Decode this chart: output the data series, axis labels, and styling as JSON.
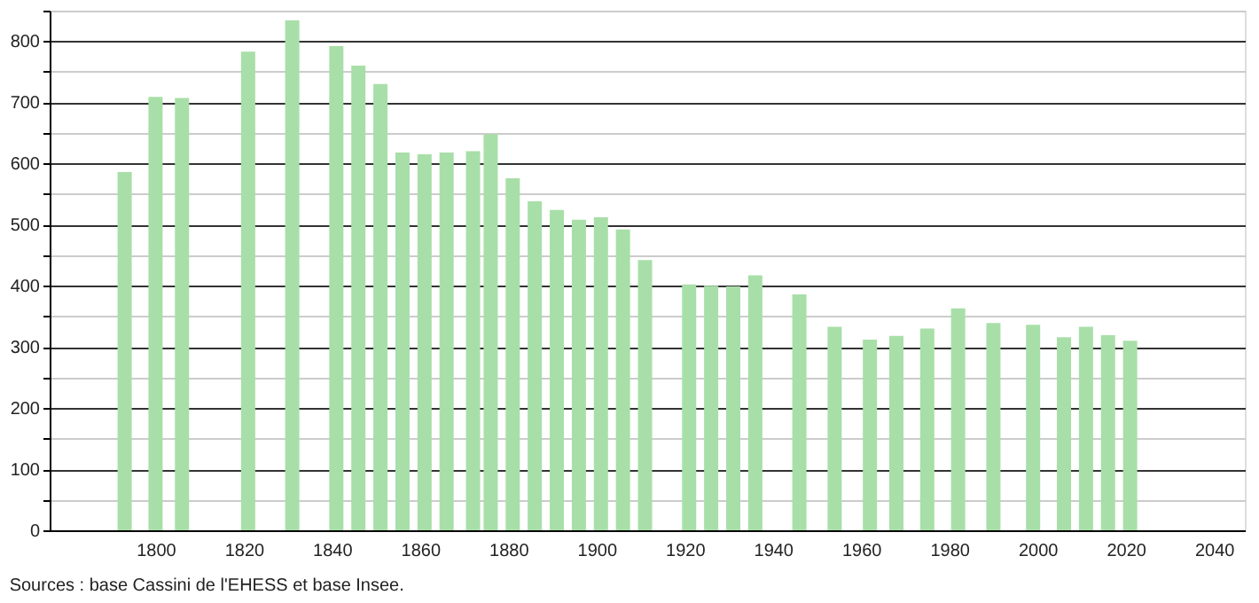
{
  "chart_data": {
    "type": "bar",
    "x": [
      1793,
      1800,
      1806,
      1821,
      1831,
      1841,
      1846,
      1851,
      1856,
      1861,
      1866,
      1872,
      1876,
      1881,
      1886,
      1891,
      1896,
      1901,
      1906,
      1911,
      1921,
      1926,
      1931,
      1936,
      1946,
      1954,
      1962,
      1968,
      1975,
      1982,
      1990,
      1999,
      2006,
      2011,
      2016,
      2021
    ],
    "values": [
      586,
      709,
      707,
      783,
      834,
      792,
      760,
      730,
      618,
      615,
      618,
      620,
      648,
      576,
      538,
      524,
      508,
      512,
      492,
      442,
      402,
      400,
      399,
      417,
      386,
      333,
      312,
      318,
      330,
      363,
      339,
      336,
      316,
      333,
      319,
      310
    ],
    "color": "#a8dfa8",
    "xlim": [
      1778,
      2045
    ],
    "xticks": [
      1800,
      1820,
      1840,
      1860,
      1880,
      1900,
      1920,
      1940,
      1960,
      1980,
      2000,
      2020,
      2040
    ],
    "ylim": [
      0,
      850
    ],
    "yticks": [
      0,
      {
        "value": 50,
        "label": null
      },
      100,
      {
        "value": 150,
        "label": null
      },
      200,
      {
        "value": 250,
        "label": null
      },
      300,
      {
        "value": 350,
        "label": null
      },
      400,
      {
        "value": 450,
        "label": null
      },
      500,
      {
        "value": 550,
        "label": null
      },
      600,
      {
        "value": 650,
        "label": null
      },
      700,
      {
        "value": 750,
        "label": null
      },
      800,
      {
        "value": 850,
        "label": null
      }
    ],
    "grid": "y",
    "annotations": [
      "Sources : base Cassini de l'EHESS et base Insee."
    ]
  }
}
